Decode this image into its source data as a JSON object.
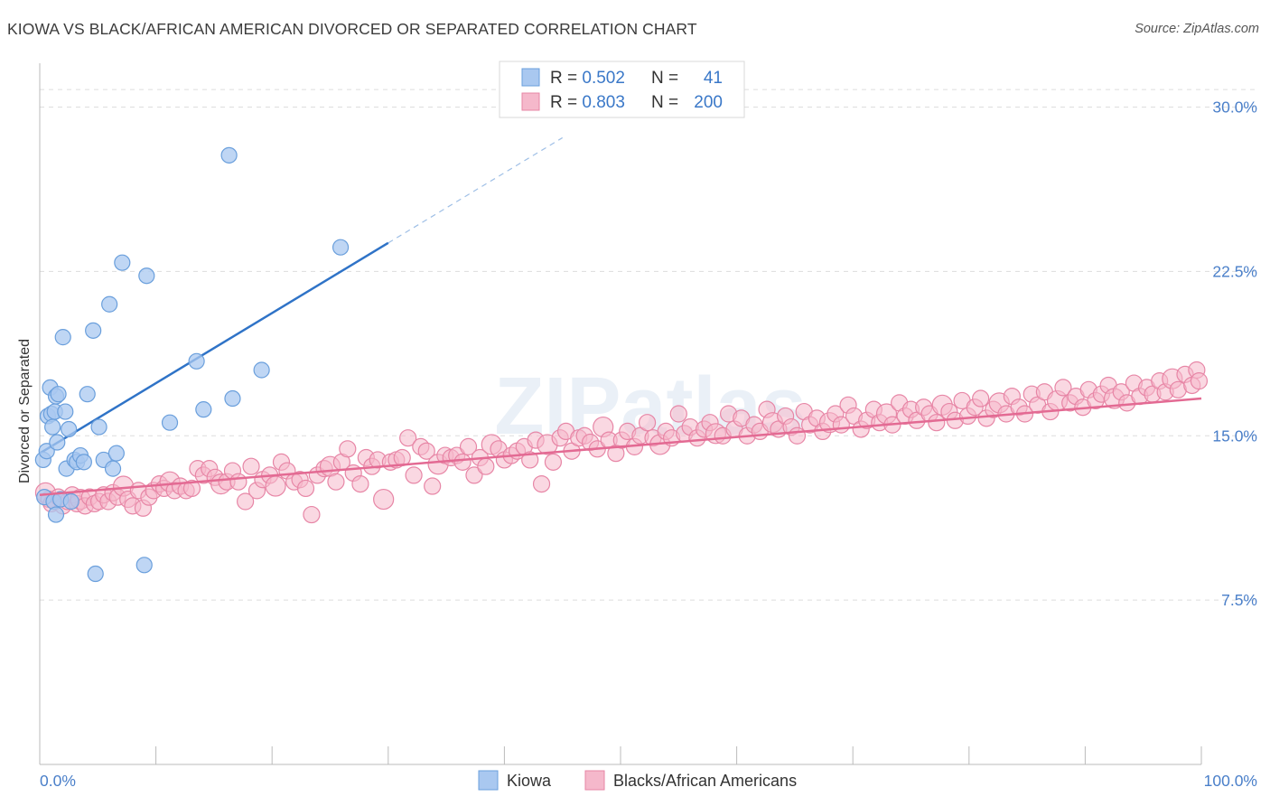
{
  "title": "KIOWA VS BLACK/AFRICAN AMERICAN DIVORCED OR SEPARATED CORRELATION CHART",
  "source": "Source: ZipAtlas.com",
  "watermark": "ZIPatlas",
  "colors": {
    "kiowa_fill": "#a9c8f0",
    "kiowa_stroke": "#6a9fdc",
    "kiowa_line": "#2f73c7",
    "black_fill": "#f5b8cb",
    "black_stroke": "#e786a6",
    "black_line": "#e36a93",
    "tick_color": "#4a7fc9",
    "grid": "#dddddd"
  },
  "legend": {
    "kiowa": {
      "r_label": "R = ",
      "r_value": "0.502",
      "n_label": "N = ",
      "n_value": "41"
    },
    "black": {
      "r_label": "R = ",
      "r_value": "0.803",
      "n_label": "N = ",
      "n_value": "200"
    }
  },
  "bottom_legend": [
    "Kiowa",
    "Blacks/African Americans"
  ],
  "chart_data": {
    "type": "scatter",
    "title": "KIOWA VS BLACK/AFRICAN AMERICAN DIVORCED OR SEPARATED CORRELATION CHART",
    "xlabel": "",
    "ylabel": "Divorced or Separated",
    "xlim": [
      0,
      100
    ],
    "ylim": [
      0,
      32
    ],
    "x_tick_labels": [
      "0.0%",
      "100.0%"
    ],
    "y_ticks": [
      7.5,
      15.0,
      22.5,
      30.0
    ],
    "y_tick_labels": [
      "7.5%",
      "15.0%",
      "22.5%",
      "30.0%"
    ],
    "grid": true,
    "legend_position": "top-center",
    "series": [
      {
        "name": "Kiowa",
        "trendline": {
          "x": [
            0,
            30
          ],
          "y": [
            14.2,
            23.8
          ],
          "dashed_to": [
            45,
            28.6
          ]
        },
        "points": [
          [
            0.3,
            13.9
          ],
          [
            0.4,
            12.2
          ],
          [
            0.6,
            14.3
          ],
          [
            0.7,
            15.9
          ],
          [
            0.9,
            17.2
          ],
          [
            1.0,
            16.0
          ],
          [
            1.1,
            15.4
          ],
          [
            1.2,
            12.0
          ],
          [
            1.3,
            16.1
          ],
          [
            1.4,
            16.8
          ],
          [
            1.5,
            14.7
          ],
          [
            1.6,
            16.9
          ],
          [
            1.8,
            12.1
          ],
          [
            1.4,
            11.4
          ],
          [
            2.0,
            19.5
          ],
          [
            2.2,
            16.1
          ],
          [
            2.3,
            13.5
          ],
          [
            2.5,
            15.3
          ],
          [
            2.7,
            12.0
          ],
          [
            3.0,
            13.9
          ],
          [
            3.2,
            13.8
          ],
          [
            3.5,
            14.1
          ],
          [
            3.8,
            13.8
          ],
          [
            4.1,
            16.9
          ],
          [
            4.6,
            19.8
          ],
          [
            4.8,
            8.7
          ],
          [
            5.1,
            15.4
          ],
          [
            5.5,
            13.9
          ],
          [
            6.0,
            21.0
          ],
          [
            6.3,
            13.5
          ],
          [
            6.6,
            14.2
          ],
          [
            7.1,
            22.9
          ],
          [
            9.0,
            9.1
          ],
          [
            9.2,
            22.3
          ],
          [
            11.2,
            15.6
          ],
          [
            13.5,
            18.4
          ],
          [
            14.1,
            16.2
          ],
          [
            16.3,
            27.8
          ],
          [
            16.6,
            16.7
          ],
          [
            19.1,
            18.0
          ],
          [
            25.9,
            23.6
          ]
        ]
      },
      {
        "name": "Blacks/African Americans",
        "trendline": {
          "x": [
            0,
            100
          ],
          "y": [
            12.3,
            16.7
          ]
        },
        "points": [
          [
            0.5,
            12.4
          ],
          [
            0.8,
            12.1
          ],
          [
            1.0,
            11.9
          ],
          [
            1.3,
            12.0
          ],
          [
            1.6,
            12.2
          ],
          [
            2.0,
            11.8
          ],
          [
            2.4,
            12.0
          ],
          [
            2.8,
            12.3
          ],
          [
            3.2,
            11.9
          ],
          [
            3.5,
            12.1
          ],
          [
            3.9,
            11.8
          ],
          [
            4.3,
            12.2
          ],
          [
            4.7,
            11.9
          ],
          [
            5.1,
            12.0
          ],
          [
            5.5,
            12.3
          ],
          [
            5.9,
            12.0
          ],
          [
            6.3,
            12.4
          ],
          [
            6.7,
            12.2
          ],
          [
            7.2,
            12.7
          ],
          [
            7.6,
            12.1
          ],
          [
            8.0,
            11.8
          ],
          [
            8.5,
            12.5
          ],
          [
            8.9,
            11.7
          ],
          [
            9.4,
            12.2
          ],
          [
            9.8,
            12.5
          ],
          [
            10.3,
            12.8
          ],
          [
            10.7,
            12.6
          ],
          [
            11.2,
            12.9
          ],
          [
            11.6,
            12.5
          ],
          [
            12.1,
            12.7
          ],
          [
            12.6,
            12.5
          ],
          [
            13.1,
            12.6
          ],
          [
            13.6,
            13.5
          ],
          [
            14.1,
            13.2
          ],
          [
            14.6,
            13.5
          ],
          [
            15.1,
            13.1
          ],
          [
            15.6,
            12.8
          ],
          [
            16.1,
            12.9
          ],
          [
            16.6,
            13.4
          ],
          [
            17.1,
            12.9
          ],
          [
            17.7,
            12.0
          ],
          [
            18.2,
            13.6
          ],
          [
            18.7,
            12.5
          ],
          [
            19.2,
            13.0
          ],
          [
            19.8,
            13.2
          ],
          [
            20.3,
            12.7
          ],
          [
            20.8,
            13.8
          ],
          [
            21.3,
            13.4
          ],
          [
            21.9,
            12.9
          ],
          [
            22.4,
            13.0
          ],
          [
            22.9,
            12.6
          ],
          [
            23.4,
            11.4
          ],
          [
            23.9,
            13.2
          ],
          [
            24.5,
            13.5
          ],
          [
            25.0,
            13.6
          ],
          [
            25.5,
            12.9
          ],
          [
            26.0,
            13.8
          ],
          [
            26.5,
            14.4
          ],
          [
            27.0,
            13.3
          ],
          [
            27.6,
            12.8
          ],
          [
            28.1,
            14.0
          ],
          [
            28.6,
            13.6
          ],
          [
            29.1,
            13.9
          ],
          [
            29.6,
            12.1
          ],
          [
            30.2,
            13.8
          ],
          [
            30.7,
            13.9
          ],
          [
            31.2,
            14.0
          ],
          [
            31.7,
            14.9
          ],
          [
            32.2,
            13.2
          ],
          [
            32.8,
            14.5
          ],
          [
            33.3,
            14.3
          ],
          [
            33.8,
            12.7
          ],
          [
            34.3,
            13.7
          ],
          [
            34.9,
            14.1
          ],
          [
            35.4,
            14.0
          ],
          [
            35.9,
            14.1
          ],
          [
            36.4,
            13.8
          ],
          [
            36.9,
            14.5
          ],
          [
            37.4,
            13.2
          ],
          [
            37.9,
            14.0
          ],
          [
            38.4,
            13.6
          ],
          [
            38.9,
            14.6
          ],
          [
            39.5,
            14.4
          ],
          [
            40.0,
            13.9
          ],
          [
            40.6,
            14.1
          ],
          [
            41.1,
            14.3
          ],
          [
            41.7,
            14.5
          ],
          [
            42.2,
            13.9
          ],
          [
            42.7,
            14.8
          ],
          [
            43.2,
            12.8
          ],
          [
            43.7,
            14.6
          ],
          [
            44.2,
            13.8
          ],
          [
            44.8,
            14.9
          ],
          [
            45.3,
            15.2
          ],
          [
            45.8,
            14.3
          ],
          [
            46.4,
            14.9
          ],
          [
            46.9,
            15.0
          ],
          [
            47.4,
            14.7
          ],
          [
            48.0,
            14.4
          ],
          [
            48.5,
            15.4
          ],
          [
            49.0,
            14.8
          ],
          [
            49.6,
            14.2
          ],
          [
            50.1,
            14.8
          ],
          [
            50.6,
            15.2
          ],
          [
            51.2,
            14.5
          ],
          [
            51.7,
            15.0
          ],
          [
            52.3,
            15.6
          ],
          [
            52.8,
            14.9
          ],
          [
            53.4,
            14.6
          ],
          [
            53.9,
            15.2
          ],
          [
            54.4,
            14.9
          ],
          [
            55.0,
            16.0
          ],
          [
            55.5,
            15.1
          ],
          [
            56.0,
            15.4
          ],
          [
            56.6,
            14.9
          ],
          [
            57.2,
            15.3
          ],
          [
            57.7,
            15.6
          ],
          [
            58.2,
            15.1
          ],
          [
            58.8,
            15.0
          ],
          [
            59.3,
            16.0
          ],
          [
            59.8,
            15.3
          ],
          [
            60.4,
            15.8
          ],
          [
            60.9,
            15.0
          ],
          [
            61.5,
            15.5
          ],
          [
            62.0,
            15.2
          ],
          [
            62.6,
            16.2
          ],
          [
            63.1,
            15.6
          ],
          [
            63.6,
            15.3
          ],
          [
            64.2,
            15.9
          ],
          [
            64.7,
            15.4
          ],
          [
            65.2,
            15.0
          ],
          [
            65.8,
            16.1
          ],
          [
            66.3,
            15.5
          ],
          [
            66.9,
            15.8
          ],
          [
            67.4,
            15.2
          ],
          [
            68.0,
            15.6
          ],
          [
            68.5,
            16.0
          ],
          [
            69.0,
            15.5
          ],
          [
            69.6,
            16.4
          ],
          [
            70.1,
            15.9
          ],
          [
            70.7,
            15.3
          ],
          [
            71.2,
            15.7
          ],
          [
            71.8,
            16.2
          ],
          [
            72.3,
            15.6
          ],
          [
            72.9,
            16.0
          ],
          [
            73.4,
            15.5
          ],
          [
            74.0,
            16.5
          ],
          [
            74.5,
            15.9
          ],
          [
            75.0,
            16.2
          ],
          [
            75.5,
            15.7
          ],
          [
            76.1,
            16.3
          ],
          [
            76.6,
            16.0
          ],
          [
            77.2,
            15.6
          ],
          [
            77.7,
            16.4
          ],
          [
            78.3,
            16.1
          ],
          [
            78.8,
            15.7
          ],
          [
            79.4,
            16.6
          ],
          [
            79.9,
            15.9
          ],
          [
            80.5,
            16.3
          ],
          [
            81.0,
            16.7
          ],
          [
            81.5,
            15.8
          ],
          [
            82.1,
            16.2
          ],
          [
            82.6,
            16.5
          ],
          [
            83.2,
            16.0
          ],
          [
            83.7,
            16.8
          ],
          [
            84.3,
            16.3
          ],
          [
            84.8,
            16.0
          ],
          [
            85.4,
            16.9
          ],
          [
            85.9,
            16.4
          ],
          [
            86.5,
            17.0
          ],
          [
            87.0,
            16.1
          ],
          [
            87.6,
            16.6
          ],
          [
            88.1,
            17.2
          ],
          [
            88.7,
            16.5
          ],
          [
            89.2,
            16.8
          ],
          [
            89.8,
            16.3
          ],
          [
            90.3,
            17.1
          ],
          [
            90.9,
            16.6
          ],
          [
            91.4,
            16.9
          ],
          [
            92.0,
            17.3
          ],
          [
            92.5,
            16.7
          ],
          [
            93.1,
            17.0
          ],
          [
            93.6,
            16.5
          ],
          [
            94.2,
            17.4
          ],
          [
            94.7,
            16.8
          ],
          [
            95.3,
            17.2
          ],
          [
            95.8,
            16.9
          ],
          [
            96.4,
            17.5
          ],
          [
            96.9,
            17.0
          ],
          [
            97.5,
            17.6
          ],
          [
            98.0,
            17.1
          ],
          [
            98.6,
            17.8
          ],
          [
            99.2,
            17.3
          ],
          [
            99.6,
            18.0
          ],
          [
            99.8,
            17.5
          ]
        ]
      }
    ]
  }
}
